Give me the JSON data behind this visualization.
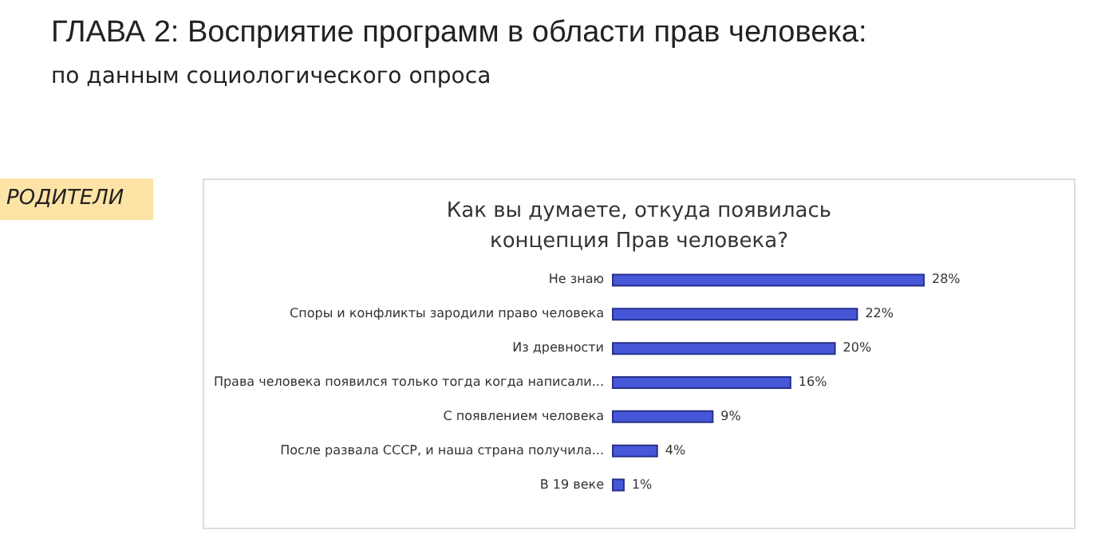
{
  "chart_data": {
    "type": "bar",
    "orientation": "horizontal",
    "title": "Как вы думаете, откуда появилась концепция Прав человека?",
    "annotations": [
      "ГЛАВА 2: Восприятие программ в области прав человека:",
      "по данным социологического опроса",
      "РОДИТЕЛИ"
    ],
    "categories": [
      "Не знаю",
      "Споры и конфликты зародили право человека",
      "Из древности",
      "Права человека появился только тогда когда написали...",
      "С появлением человека",
      "После развала СССР, и наша страна получила...",
      "В 19 веке"
    ],
    "values": [
      28,
      22,
      20,
      16,
      9,
      4,
      1
    ],
    "value_labels": [
      "28%",
      "22%",
      "20%",
      "16%",
      "9%",
      "4%",
      "1%"
    ],
    "color": "#4657d8"
  }
}
